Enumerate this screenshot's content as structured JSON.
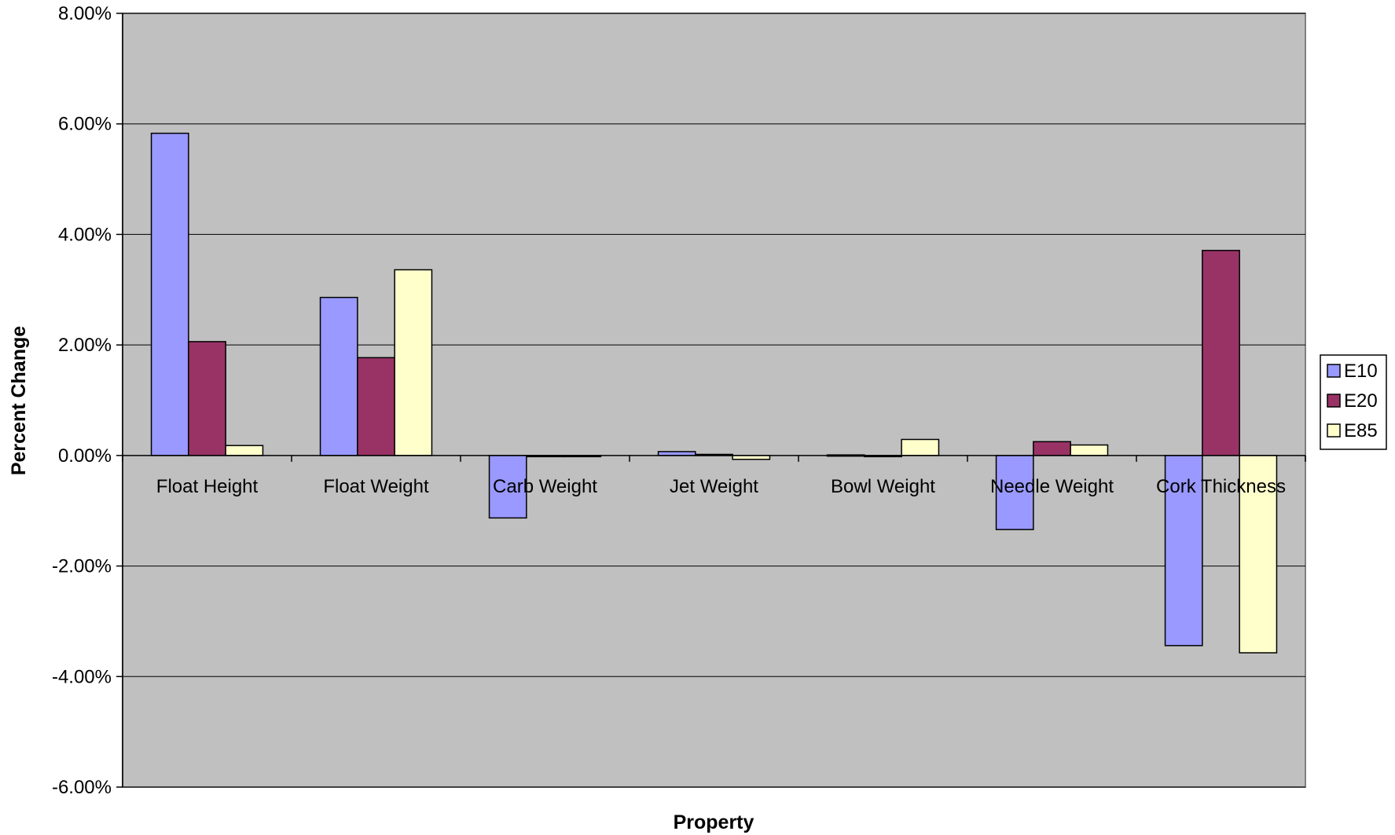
{
  "chart_data": {
    "type": "bar",
    "title": "",
    "xlabel": "Property",
    "ylabel": "Percent Change",
    "categories": [
      "Float Height",
      "Float Weight",
      "Carb Weight",
      "Jet Weight",
      "Bowl Weight",
      "Needle Weight",
      "Cork Thickness"
    ],
    "series": [
      {
        "name": "E10",
        "color": "#9999ff",
        "values": [
          0.0583,
          0.0286,
          -0.0113,
          0.0007,
          0.0001,
          -0.0134,
          -0.0344
        ]
      },
      {
        "name": "E20",
        "color": "#993366",
        "values": [
          0.0206,
          0.0177,
          -0.0001,
          0.0002,
          -0.0001,
          0.0025,
          0.0371
        ]
      },
      {
        "name": "E85",
        "color": "#ffffcc",
        "values": [
          0.0018,
          0.0336,
          -0.0001,
          -0.0007,
          0.0029,
          0.0019,
          -0.0357
        ]
      }
    ],
    "ylim": [
      -0.06,
      0.08
    ],
    "yticks": [
      0.08,
      0.06,
      0.04,
      0.02,
      0.0,
      -0.02,
      -0.04,
      -0.06
    ],
    "ytick_labels": [
      "8.00%",
      "6.00%",
      "4.00%",
      "2.00%",
      "0.00%",
      "-2.00%",
      "-4.00%",
      "-6.00%"
    ],
    "grid": true,
    "legend_position": "right",
    "plot_background": "#c0c0c0"
  }
}
